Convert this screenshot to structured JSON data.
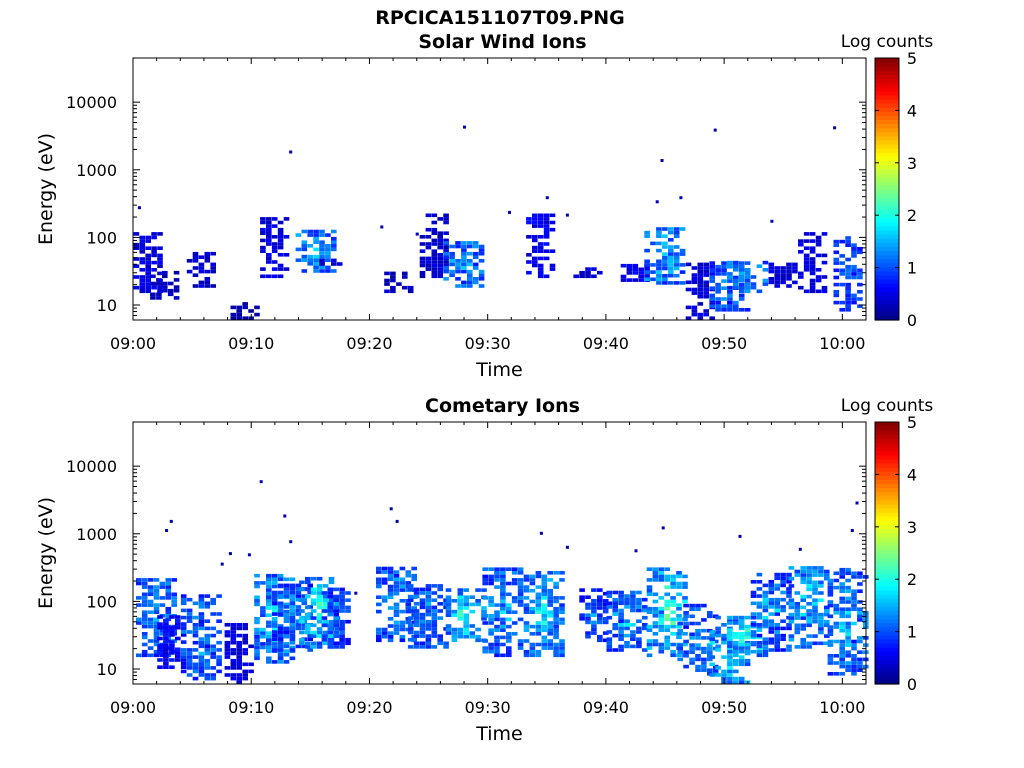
{
  "figure": {
    "title": "RPCICA151107T09.PNG"
  },
  "chart_data": [
    {
      "type": "heatmap",
      "title": "Solar Wind Ions",
      "xlabel": "Time",
      "ylabel": "Energy (eV)",
      "y_scale": "log",
      "ylim": [
        6,
        45000
      ],
      "xlim": [
        "09:00",
        "10:02"
      ],
      "x_ticks": [
        "09:00",
        "09:10",
        "09:20",
        "09:30",
        "09:40",
        "09:50",
        "10:00"
      ],
      "y_ticks": [
        "10",
        "100",
        "1000",
        "10000"
      ],
      "colorbar": {
        "label": "Log counts",
        "ticks": [
          "0",
          "1",
          "2",
          "3",
          "4",
          "5"
        ],
        "range": [
          0,
          5
        ],
        "colormap": "jet"
      },
      "grid": false,
      "events": [
        {
          "t": 1.3,
          "emin": 15,
          "emax": 110,
          "level": 0.6
        },
        {
          "t": 2.7,
          "emin": 12,
          "emax": 30,
          "level": 0.4
        },
        {
          "t": 5.8,
          "emin": 18,
          "emax": 55,
          "level": 0.5
        },
        {
          "t": 9.5,
          "emin": 6,
          "emax": 11,
          "level": 0.3
        },
        {
          "t": 12.0,
          "emin": 25,
          "emax": 190,
          "level": 0.6
        },
        {
          "t": 15.5,
          "emin": 30,
          "emax": 120,
          "level": 1.5,
          "peak": 1.9
        },
        {
          "t": 16.5,
          "emin": 38,
          "emax": 45,
          "level": 0.6
        },
        {
          "t": 22.5,
          "emin": 15,
          "emax": 30,
          "level": 0.4
        },
        {
          "t": 25.5,
          "emin": 25,
          "emax": 200,
          "level": 0.5
        },
        {
          "t": 28.0,
          "emin": 18,
          "emax": 80,
          "level": 1.4,
          "peak": 1.9
        },
        {
          "t": 34.5,
          "emin": 25,
          "emax": 200,
          "level": 0.7
        },
        {
          "t": 38.5,
          "emin": 25,
          "emax": 35,
          "level": 0.5
        },
        {
          "t": 42.5,
          "emin": 22,
          "emax": 40,
          "level": 0.7
        },
        {
          "t": 45.0,
          "emin": 20,
          "emax": 130,
          "level": 1.5,
          "peak": 2.0
        },
        {
          "t": 48.0,
          "emin": 6,
          "emax": 40,
          "level": 0.6
        },
        {
          "t": 50.5,
          "emin": 8,
          "emax": 40,
          "level": 1.2,
          "peak": 1.8
        },
        {
          "t": 52.0,
          "emin": 15,
          "emax": 40,
          "level": 1.4,
          "peak": 2.0
        },
        {
          "t": 55.0,
          "emin": 18,
          "emax": 40,
          "level": 0.5
        },
        {
          "t": 57.5,
          "emin": 15,
          "emax": 110,
          "level": 0.6
        },
        {
          "t": 60.5,
          "emin": 8,
          "emax": 100,
          "level": 1.0,
          "peak": 1.6
        }
      ],
      "scatter": [
        {
          "t": 0.5,
          "e": 270
        },
        {
          "t": 13.3,
          "e": 1800
        },
        {
          "t": 28.0,
          "e": 4200
        },
        {
          "t": 31.8,
          "e": 230
        },
        {
          "t": 35.0,
          "e": 380
        },
        {
          "t": 36.7,
          "e": 210
        },
        {
          "t": 44.7,
          "e": 1350
        },
        {
          "t": 46.3,
          "e": 380
        },
        {
          "t": 49.2,
          "e": 3800
        },
        {
          "t": 54.0,
          "e": 170
        },
        {
          "t": 59.3,
          "e": 4100
        },
        {
          "t": 21.0,
          "e": 140
        },
        {
          "t": 24.0,
          "e": 110
        },
        {
          "t": 44.3,
          "e": 330
        }
      ]
    },
    {
      "type": "heatmap",
      "title": "Cometary Ions",
      "xlabel": "Time",
      "ylabel": "Energy (eV)",
      "y_scale": "log",
      "ylim": [
        6,
        45000
      ],
      "xlim": [
        "09:00",
        "10:02"
      ],
      "x_ticks": [
        "09:00",
        "09:10",
        "09:20",
        "09:30",
        "09:40",
        "09:50",
        "10:00"
      ],
      "y_ticks": [
        "10",
        "100",
        "1000",
        "10000"
      ],
      "colorbar": {
        "label": "Log counts",
        "ticks": [
          "0",
          "1",
          "2",
          "3",
          "4",
          "5"
        ],
        "range": [
          0,
          5
        ],
        "colormap": "jet"
      },
      "grid": false,
      "events": [
        {
          "t": 2.0,
          "emin": 15,
          "emax": 220,
          "level": 1.3,
          "peak": 2.0
        },
        {
          "t": 3.3,
          "emin": 10,
          "emax": 60,
          "level": 0.8
        },
        {
          "t": 5.8,
          "emin": 6,
          "emax": 120,
          "level": 1.2,
          "peak": 1.9
        },
        {
          "t": 9.0,
          "emin": 6,
          "emax": 45,
          "level": 0.6
        },
        {
          "t": 12.0,
          "emin": 12,
          "emax": 230,
          "level": 1.5,
          "peak": 2.2
        },
        {
          "t": 13.5,
          "emin": 18,
          "emax": 180,
          "level": 1.2,
          "peak": 2.0
        },
        {
          "t": 15.8,
          "emin": 20,
          "emax": 220,
          "level": 1.6,
          "peak": 2.9
        },
        {
          "t": 17.2,
          "emin": 20,
          "emax": 150,
          "level": 1.0,
          "peak": 1.7
        },
        {
          "t": 22.3,
          "emin": 25,
          "emax": 300,
          "level": 1.3,
          "peak": 2.1
        },
        {
          "t": 25.0,
          "emin": 20,
          "emax": 180,
          "level": 1.2,
          "peak": 1.9
        },
        {
          "t": 28.2,
          "emin": 25,
          "emax": 140,
          "level": 1.6,
          "peak": 2.8
        },
        {
          "t": 31.3,
          "emin": 15,
          "emax": 300,
          "level": 1.3,
          "peak": 2.2
        },
        {
          "t": 34.8,
          "emin": 15,
          "emax": 280,
          "level": 1.5,
          "peak": 2.4
        },
        {
          "t": 39.0,
          "emin": 25,
          "emax": 140,
          "level": 1.0,
          "peak": 1.7
        },
        {
          "t": 41.8,
          "emin": 18,
          "emax": 130,
          "level": 1.3,
          "peak": 2.3
        },
        {
          "t": 45.2,
          "emin": 15,
          "emax": 300,
          "level": 1.7,
          "peak": 3.2
        },
        {
          "t": 47.8,
          "emin": 8,
          "emax": 90,
          "level": 1.2,
          "peak": 2.0
        },
        {
          "t": 50.5,
          "emin": 6,
          "emax": 60,
          "level": 1.6,
          "peak": 2.8
        },
        {
          "t": 52.0,
          "emin": 15,
          "emax": 50,
          "level": 1.6,
          "peak": 3.2
        },
        {
          "t": 54.0,
          "emin": 18,
          "emax": 250,
          "level": 1.2,
          "peak": 2.2
        },
        {
          "t": 57.2,
          "emin": 20,
          "emax": 300,
          "level": 1.5,
          "peak": 2.4
        },
        {
          "t": 60.5,
          "emin": 8,
          "emax": 280,
          "level": 1.3,
          "peak": 2.4
        }
      ],
      "scatter": [
        {
          "t": 3.2,
          "e": 1500
        },
        {
          "t": 2.8,
          "e": 1100
        },
        {
          "t": 8.2,
          "e": 500
        },
        {
          "t": 9.8,
          "e": 480
        },
        {
          "t": 10.8,
          "e": 5800
        },
        {
          "t": 12.8,
          "e": 1800
        },
        {
          "t": 13.3,
          "e": 750
        },
        {
          "t": 18.8,
          "e": 130
        },
        {
          "t": 21.8,
          "e": 2300
        },
        {
          "t": 22.3,
          "e": 1500
        },
        {
          "t": 34.5,
          "e": 1000
        },
        {
          "t": 36.7,
          "e": 620
        },
        {
          "t": 42.5,
          "e": 550
        },
        {
          "t": 44.8,
          "e": 1200
        },
        {
          "t": 51.3,
          "e": 900
        },
        {
          "t": 56.4,
          "e": 580
        },
        {
          "t": 60.8,
          "e": 1100
        },
        {
          "t": 61.2,
          "e": 2800
        },
        {
          "t": 7.5,
          "e": 350
        }
      ]
    }
  ]
}
